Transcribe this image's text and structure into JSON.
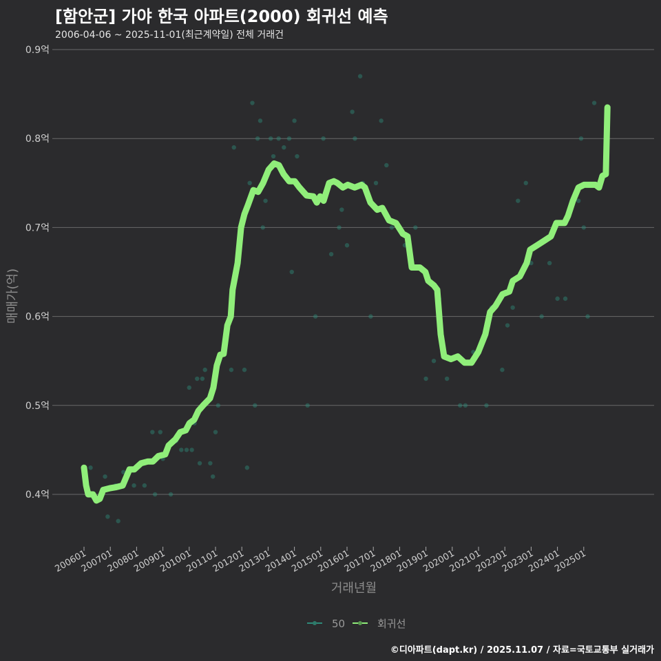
{
  "chart_data": {
    "type": "line",
    "title": "[함안군] 가야 한국 아파트(2000) 회귀선 예측",
    "subtitle": "2006-04-06 ~ 2025-11-01(최근계약일) 전체 거래건",
    "xlabel": "거래년월",
    "ylabel": "매매가(억)",
    "ylim": [
      0.35,
      0.9
    ],
    "y_ticks": [
      0.4,
      0.5,
      0.6,
      0.7,
      0.8,
      0.9
    ],
    "y_tick_labels": [
      "0.4억",
      "0.5억",
      "0.6억",
      "0.7억",
      "0.8억",
      "0.9억"
    ],
    "xlim": [
      2005.6,
      2026.3
    ],
    "x_ticks": [
      2006,
      2007,
      2008,
      2009,
      2010,
      2011,
      2012,
      2013,
      2014,
      2015,
      2016,
      2017,
      2018,
      2019,
      2020,
      2021,
      2022,
      2023,
      2024,
      2025
    ],
    "x_tick_labels": [
      "200601",
      "200701",
      "200801",
      "200901",
      "201001",
      "201101",
      "201201",
      "201301",
      "201401",
      "201501",
      "201601",
      "201701",
      "201801",
      "201901",
      "202001",
      "202101",
      "202201",
      "202301",
      "202401",
      "202501"
    ],
    "grid": true,
    "legend_position": "bottom",
    "legend": [
      "50",
      "회귀선"
    ],
    "colors": {
      "scatter": "#2e8b7a",
      "line": "#90ee7a"
    },
    "series": [
      {
        "name": "회귀선",
        "type": "line",
        "x": [
          2006.0,
          2006.08,
          2006.16,
          2006.34,
          2006.47,
          2006.6,
          2006.73,
          2006.99,
          2007.2,
          2007.47,
          2007.73,
          2007.91,
          2008.17,
          2008.43,
          2008.62,
          2008.83,
          2009.09,
          2009.22,
          2009.48,
          2009.66,
          2009.87,
          2010.01,
          2010.19,
          2010.35,
          2010.53,
          2010.79,
          2010.92,
          2011.05,
          2011.18,
          2011.31,
          2011.45,
          2011.58,
          2011.65,
          2011.84,
          2011.97,
          2012.1,
          2012.23,
          2012.44,
          2012.62,
          2012.81,
          2013.02,
          2013.23,
          2013.41,
          2013.59,
          2013.8,
          2014.01,
          2014.19,
          2014.46,
          2014.72,
          2014.85,
          2014.98,
          2015.11,
          2015.32,
          2015.5,
          2015.63,
          2015.84,
          2016.03,
          2016.29,
          2016.55,
          2016.68,
          2016.89,
          2017.15,
          2017.34,
          2017.6,
          2017.86,
          2018.12,
          2018.3,
          2018.46,
          2018.77,
          2018.98,
          2019.09,
          2019.3,
          2019.43,
          2019.56,
          2019.69,
          2019.95,
          2020.21,
          2020.47,
          2020.73,
          2020.99,
          2021.26,
          2021.44,
          2021.65,
          2021.91,
          2022.17,
          2022.3,
          2022.57,
          2022.83,
          2022.96,
          2023.23,
          2023.49,
          2023.75,
          2023.96,
          2024.27,
          2024.4,
          2024.59,
          2024.8,
          2025.01,
          2025.45,
          2025.58,
          2025.71,
          2025.84,
          2025.9
        ],
        "y": [
          0.43,
          0.41,
          0.4,
          0.4,
          0.393,
          0.395,
          0.405,
          0.407,
          0.408,
          0.41,
          0.428,
          0.428,
          0.435,
          0.437,
          0.437,
          0.443,
          0.445,
          0.455,
          0.462,
          0.47,
          0.472,
          0.48,
          0.484,
          0.494,
          0.5,
          0.508,
          0.52,
          0.545,
          0.557,
          0.558,
          0.59,
          0.6,
          0.63,
          0.66,
          0.7,
          0.715,
          0.725,
          0.742,
          0.74,
          0.75,
          0.765,
          0.772,
          0.77,
          0.76,
          0.752,
          0.752,
          0.745,
          0.736,
          0.735,
          0.728,
          0.735,
          0.73,
          0.75,
          0.752,
          0.75,
          0.745,
          0.748,
          0.745,
          0.748,
          0.745,
          0.728,
          0.72,
          0.722,
          0.708,
          0.705,
          0.693,
          0.69,
          0.655,
          0.655,
          0.65,
          0.64,
          0.635,
          0.63,
          0.58,
          0.555,
          0.552,
          0.555,
          0.548,
          0.548,
          0.56,
          0.58,
          0.605,
          0.612,
          0.625,
          0.628,
          0.64,
          0.645,
          0.66,
          0.675,
          0.68,
          0.685,
          0.69,
          0.705,
          0.705,
          0.713,
          0.73,
          0.745,
          0.748,
          0.748,
          0.745,
          0.758,
          0.76,
          0.835
        ]
      },
      {
        "name": "50",
        "type": "scatter",
        "x": [
          2006.25,
          2006.8,
          2006.9,
          2007.2,
          2007.3,
          2007.5,
          2007.9,
          2008.3,
          2008.6,
          2008.7,
          2008.9,
          2009.0,
          2009.3,
          2009.5,
          2009.7,
          2009.9,
          2010.0,
          2010.1,
          2010.2,
          2010.3,
          2010.4,
          2010.5,
          2010.6,
          2010.8,
          2010.9,
          2011.0,
          2011.1,
          2011.6,
          2011.7,
          2012.1,
          2012.2,
          2012.3,
          2012.4,
          2012.5,
          2012.6,
          2012.7,
          2012.8,
          2012.9,
          2013.1,
          2013.2,
          2013.4,
          2013.6,
          2013.8,
          2013.9,
          2014.0,
          2014.1,
          2014.5,
          2014.8,
          2015.1,
          2015.4,
          2015.7,
          2015.8,
          2016.0,
          2016.2,
          2016.3,
          2016.5,
          2016.6,
          2016.9,
          2017.1,
          2017.3,
          2017.5,
          2017.7,
          2018.2,
          2018.4,
          2018.6,
          2019.0,
          2019.3,
          2019.5,
          2019.8,
          2020.3,
          2020.5,
          2020.8,
          2021.3,
          2021.5,
          2021.9,
          2022.1,
          2022.3,
          2022.5,
          2022.8,
          2023.0,
          2023.4,
          2023.7,
          2023.9,
          2024.0,
          2024.3,
          2024.8,
          2024.9,
          2025.0,
          2025.15,
          2025.4
        ],
        "y": [
          0.43,
          0.42,
          0.375,
          0.41,
          0.37,
          0.425,
          0.41,
          0.41,
          0.47,
          0.4,
          0.47,
          0.44,
          0.4,
          0.46,
          0.45,
          0.45,
          0.52,
          0.45,
          0.48,
          0.53,
          0.435,
          0.53,
          0.54,
          0.435,
          0.42,
          0.47,
          0.5,
          0.54,
          0.79,
          0.54,
          0.43,
          0.75,
          0.84,
          0.5,
          0.8,
          0.82,
          0.7,
          0.73,
          0.8,
          0.78,
          0.8,
          0.79,
          0.8,
          0.65,
          0.82,
          0.78,
          0.5,
          0.6,
          0.8,
          0.67,
          0.7,
          0.72,
          0.68,
          0.83,
          0.8,
          0.87,
          0.75,
          0.6,
          0.75,
          0.82,
          0.77,
          0.7,
          0.68,
          0.67,
          0.7,
          0.53,
          0.55,
          0.62,
          0.53,
          0.5,
          0.5,
          0.56,
          0.5,
          0.61,
          0.54,
          0.59,
          0.61,
          0.73,
          0.75,
          0.66,
          0.6,
          0.66,
          0.7,
          0.62,
          0.62,
          0.73,
          0.8,
          0.7,
          0.6,
          0.84
        ]
      }
    ]
  },
  "footer": "©디아파트(dapt.kr) / 2025.11.07 / 자료=국토교통부 실거래가"
}
